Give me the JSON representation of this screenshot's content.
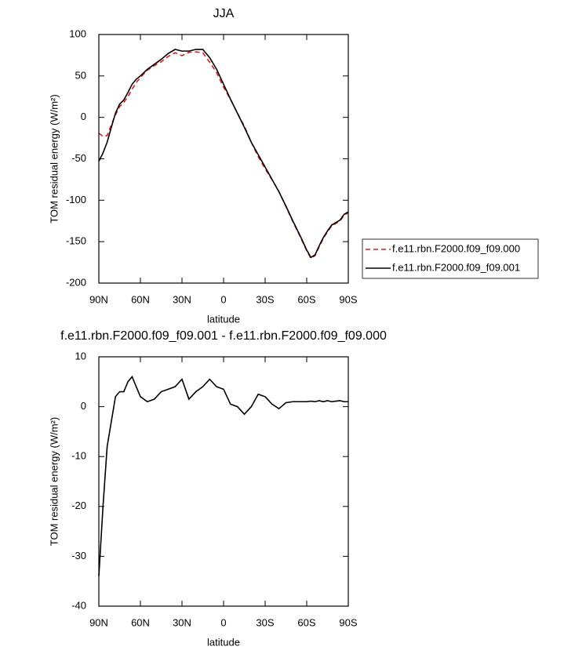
{
  "chart_data": [
    {
      "type": "line",
      "title": "JJA",
      "x_label": "latitude",
      "y_label": "TOM residual energy (W/m²)",
      "x": [
        90,
        87,
        84,
        81,
        78,
        75,
        72,
        69,
        66,
        63,
        60,
        55,
        50,
        45,
        40,
        35,
        30,
        25,
        20,
        15,
        10,
        5,
        0,
        -5,
        -10,
        -15,
        -20,
        -25,
        -30,
        -35,
        -40,
        -45,
        -50,
        -55,
        -60,
        -63,
        -66,
        -69,
        -72,
        -75,
        -78,
        -81,
        -84,
        -87,
        -90
      ],
      "series": [
        {
          "name": "f.e11.rbn.F2000.f09_f09.000",
          "color": "#e41a1c",
          "dashed": true,
          "values": [
            -19,
            -23,
            -22,
            -9,
            3,
            13,
            18,
            25,
            34,
            42,
            48,
            57,
            62.5,
            67,
            73.5,
            78,
            74.5,
            78.5,
            79,
            78,
            66.5,
            54,
            36.5,
            21.5,
            5,
            -10.5,
            -30,
            -47.5,
            -62,
            -75.5,
            -89.6,
            -107.8,
            -126,
            -143,
            -161,
            -170.1,
            -167,
            -156.2,
            -146,
            -138.2,
            -131,
            -128.1,
            -125.2,
            -118,
            -115
          ]
        },
        {
          "name": "f.e11.rbn.F2000.f09_f09.001",
          "color": "#000000",
          "dashed": false,
          "values": [
            -53,
            -43,
            -30,
            -12,
            5,
            16,
            21,
            30,
            40,
            46,
            50,
            58,
            64,
            70,
            77,
            82,
            80,
            80,
            82,
            82,
            72,
            58,
            40,
            22,
            5,
            -12,
            -30,
            -45,
            -60,
            -75,
            -90,
            -107,
            -125,
            -142,
            -160,
            -169,
            -166,
            -155,
            -145,
            -137,
            -130,
            -127,
            -124,
            -117,
            -114
          ]
        }
      ],
      "xlim": [
        90,
        -90
      ],
      "xticks": [
        {
          "value": 90,
          "label": "90N"
        },
        {
          "value": 60,
          "label": "60N"
        },
        {
          "value": 30,
          "label": "30N"
        },
        0,
        {
          "value": -30,
          "label": "30S"
        },
        {
          "value": -60,
          "label": "60S"
        },
        {
          "value": -90,
          "label": "90S"
        }
      ],
      "ylim": [
        -200,
        100
      ],
      "yticks": [
        -200,
        -150,
        -100,
        -50,
        0,
        50,
        100
      ],
      "legend": "right"
    },
    {
      "type": "line",
      "title": "f.e11.rbn.F2000.f09_f09.001 - f.e11.rbn.F2000.f09_f09.000",
      "x_label": "latitude",
      "y_label": "TOM residual energy (W/m²)",
      "x": [
        90,
        87,
        84,
        81,
        78,
        75,
        72,
        69,
        66,
        63,
        60,
        55,
        50,
        45,
        40,
        35,
        30,
        25,
        20,
        15,
        10,
        5,
        0,
        -5,
        -10,
        -15,
        -20,
        -25,
        -30,
        -35,
        -40,
        -45,
        -50,
        -55,
        -60,
        -63,
        -66,
        -69,
        -72,
        -75,
        -78,
        -81,
        -84,
        -87,
        -90
      ],
      "color": "#000000",
      "values": [
        -34,
        -20,
        -8,
        -3,
        2,
        3,
        3,
        5,
        6,
        4,
        2,
        1,
        1.5,
        3,
        3.5,
        4,
        5.5,
        1.5,
        3,
        4,
        5.5,
        4,
        3.5,
        0.5,
        0,
        -1.5,
        0,
        2.5,
        2,
        0.5,
        -0.4,
        0.8,
        1,
        1,
        1,
        1.1,
        1,
        1.2,
        1,
        1.2,
        1,
        1.1,
        1.2,
        1,
        1
      ],
      "xlim": [
        90,
        -90
      ],
      "xticks": [
        {
          "value": 90,
          "label": "90N"
        },
        {
          "value": 60,
          "label": "60N"
        },
        {
          "value": 30,
          "label": "30N"
        },
        0,
        {
          "value": -30,
          "label": "30S"
        },
        {
          "value": -60,
          "label": "60S"
        },
        {
          "value": -90,
          "label": "90S"
        }
      ],
      "ylim": [
        -40,
        10
      ],
      "yticks": [
        -40,
        -30,
        -20,
        -10,
        0,
        10
      ]
    }
  ]
}
